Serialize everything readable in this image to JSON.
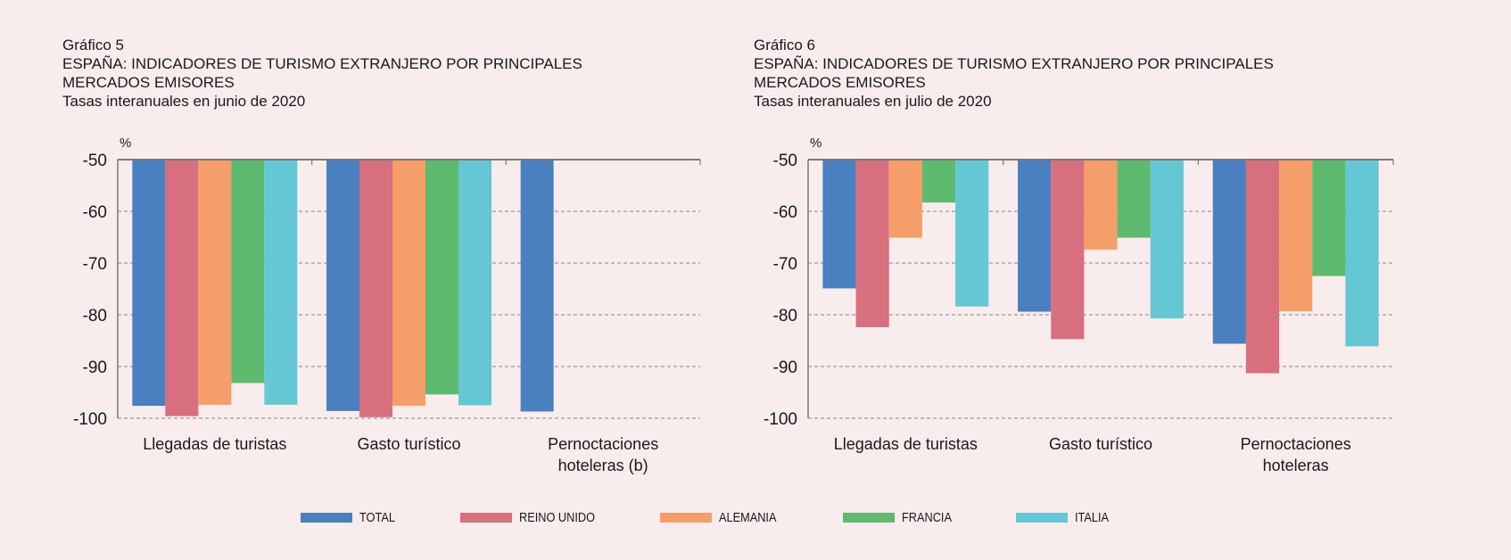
{
  "colors": {
    "TOTAL": "#4a7fc0",
    "REINO UNIDO": "#d86f7e",
    "ALEMANIA": "#f69e69",
    "FRANCIA": "#5eba6e",
    "ITALIA": "#66c7d4"
  },
  "legend": [
    "TOTAL",
    "REINO UNIDO",
    "ALEMANIA",
    "FRANCIA",
    "ITALIA"
  ],
  "chart_data": [
    {
      "type": "bar",
      "header": {
        "number": "Gráfico 5",
        "title_line1": "ESPAÑA: INDICADORES DE TURISMO EXTRANJERO POR PRINCIPALES",
        "title_line2": "MERCADOS EMISORES",
        "subtitle": "Tasas interanuales en junio de 2020"
      },
      "ylabel": "%",
      "ylim": [
        -100,
        -50
      ],
      "yticks": [
        "-50",
        "-60",
        "-70",
        "-80",
        "-90",
        "-100"
      ],
      "grid": true,
      "categories": [
        [
          "Llegadas de turistas"
        ],
        [
          "Gasto turístico"
        ],
        [
          "Pernoctaciones",
          "hoteleras (b)"
        ]
      ],
      "series": [
        {
          "name": "TOTAL",
          "values": [
            -97.6,
            -98.6,
            -98.7
          ]
        },
        {
          "name": "REINO UNIDO",
          "values": [
            -99.6,
            -99.8,
            null
          ]
        },
        {
          "name": "ALEMANIA",
          "values": [
            -97.4,
            -97.6,
            null
          ]
        },
        {
          "name": "FRANCIA",
          "values": [
            -93.2,
            -95.4,
            null
          ]
        },
        {
          "name": "ITALIA",
          "values": [
            -97.4,
            -97.5,
            null
          ]
        }
      ]
    },
    {
      "type": "bar",
      "header": {
        "number": "Gráfico 6",
        "title_line1": "ESPAÑA: INDICADORES DE TURISMO EXTRANJERO POR PRINCIPALES",
        "title_line2": "MERCADOS EMISORES",
        "subtitle": "Tasas interanuales en julio de 2020"
      },
      "ylabel": "%",
      "ylim": [
        -100,
        -50
      ],
      "yticks": [
        "-50",
        "-60",
        "-70",
        "-80",
        "-90",
        "-100"
      ],
      "grid": true,
      "categories": [
        [
          "Llegadas de turistas"
        ],
        [
          "Gasto turístico"
        ],
        [
          "Pernoctaciones",
          "hoteleras"
        ]
      ],
      "series": [
        {
          "name": "TOTAL",
          "values": [
            -74.9,
            -79.4,
            -85.6
          ]
        },
        {
          "name": "REINO UNIDO",
          "values": [
            -82.4,
            -84.7,
            -91.3
          ]
        },
        {
          "name": "ALEMANIA",
          "values": [
            -65.1,
            -67.4,
            -79.3
          ]
        },
        {
          "name": "FRANCIA",
          "values": [
            -58.3,
            -65.1,
            -72.5
          ]
        },
        {
          "name": "ITALIA",
          "values": [
            -78.4,
            -80.7,
            -86.1
          ]
        }
      ]
    }
  ]
}
